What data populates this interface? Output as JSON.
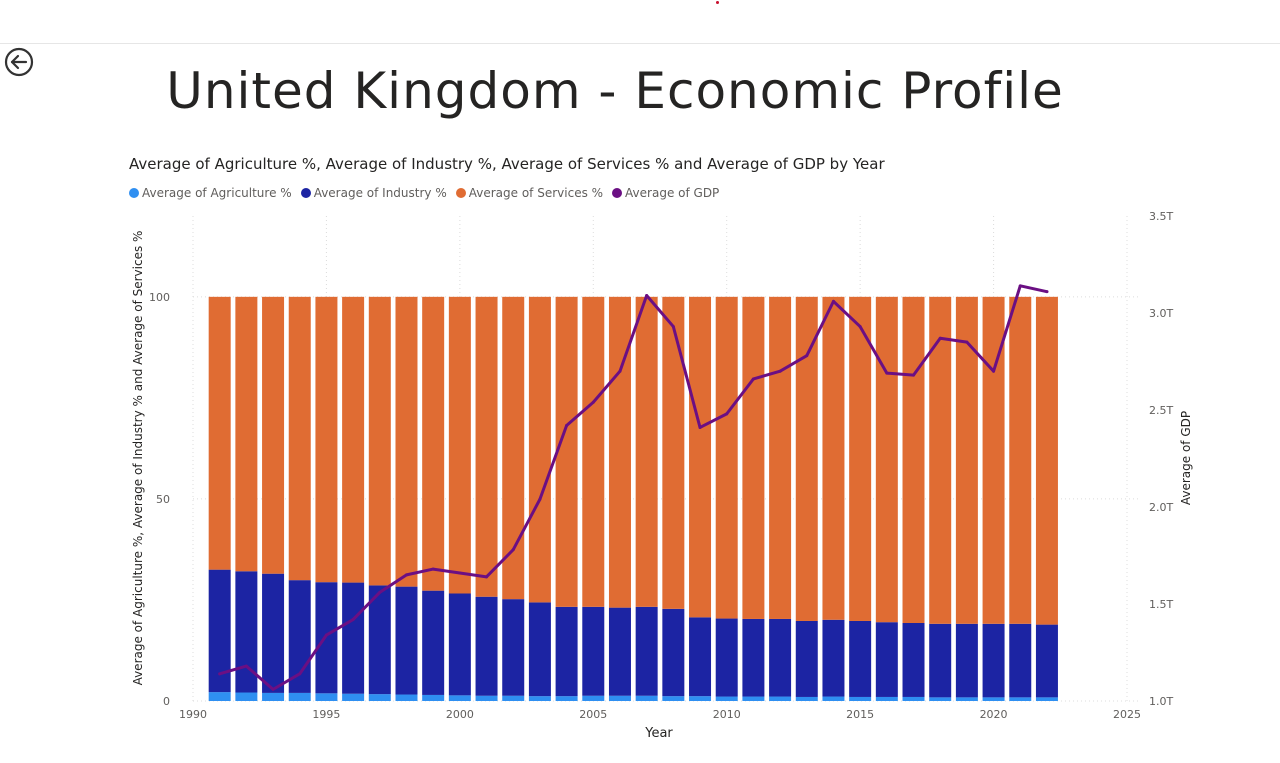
{
  "page": {
    "title": "United Kingdom - Economic Profile"
  },
  "icons": {
    "back": "back-arrow-icon"
  },
  "colors": {
    "agriculture": "#2f8ff1",
    "industry": "#1c24a3",
    "services": "#e06c33",
    "gdp": "#6b0f83",
    "grid": "#dcdcdc",
    "axis_text": "#605e5c"
  },
  "chart_data": {
    "type": "bar",
    "stacked": true,
    "title": "Average of Agriculture %, Average of Industry %, Average of Services % and Average of GDP by Year",
    "xlabel": "Year",
    "ylabel": "Average of Agriculture %, Average of Industry % and Average of Services %",
    "y2label": "Average of GDP",
    "xlim": [
      1990,
      2025
    ],
    "ylim": [
      0,
      120
    ],
    "y2lim": [
      1.0,
      3.5
    ],
    "x_ticks": [
      "1990",
      "1995",
      "2000",
      "2005",
      "2010",
      "2015",
      "2020",
      "2025"
    ],
    "y_ticks": [
      "0",
      "50",
      "100"
    ],
    "y2_ticks": [
      "1.0T",
      "1.5T",
      "2.0T",
      "2.5T",
      "3.0T",
      "3.5T"
    ],
    "legend_position": "top-left",
    "grid": true,
    "x": [
      1991,
      1992,
      1993,
      1994,
      1995,
      1996,
      1997,
      1998,
      1999,
      2000,
      2001,
      2002,
      2003,
      2004,
      2005,
      2006,
      2007,
      2008,
      2009,
      2010,
      2011,
      2012,
      2013,
      2014,
      2015,
      2016,
      2017,
      2018,
      2019,
      2020,
      2021,
      2022
    ],
    "series": [
      {
        "name": "Average of Agriculture %",
        "kind": "bar",
        "axis": "left",
        "values": [
          2.2,
          2.1,
          2.0,
          2.0,
          1.9,
          1.8,
          1.7,
          1.6,
          1.5,
          1.4,
          1.3,
          1.3,
          1.2,
          1.2,
          1.3,
          1.3,
          1.3,
          1.2,
          1.2,
          1.1,
          1.1,
          1.1,
          1.0,
          1.1,
          1.0,
          1.0,
          1.0,
          0.9,
          0.9,
          0.9,
          0.9,
          0.9
        ]
      },
      {
        "name": "Average of Industry %",
        "kind": "bar",
        "axis": "left",
        "values": [
          30.3,
          30.0,
          29.5,
          27.9,
          27.5,
          27.5,
          26.9,
          26.7,
          25.8,
          25.2,
          24.5,
          23.9,
          23.2,
          22.1,
          22.0,
          21.8,
          22.0,
          21.6,
          19.5,
          19.3,
          19.2,
          19.2,
          18.8,
          19.0,
          18.8,
          18.5,
          18.3,
          18.2,
          18.2,
          18.2,
          18.2,
          18.0
        ]
      },
      {
        "name": "Average of Services %",
        "kind": "bar",
        "axis": "left",
        "values": [
          67.5,
          67.9,
          68.5,
          70.1,
          70.6,
          70.7,
          71.4,
          71.7,
          72.7,
          73.4,
          74.2,
          74.8,
          75.6,
          76.7,
          76.7,
          76.9,
          76.7,
          77.2,
          79.3,
          79.6,
          79.7,
          79.7,
          80.2,
          79.9,
          80.2,
          80.5,
          80.7,
          80.9,
          80.9,
          80.9,
          80.9,
          81.1
        ]
      },
      {
        "name": "Average of GDP",
        "kind": "line",
        "axis": "right",
        "unit": "T",
        "values": [
          1.14,
          1.18,
          1.06,
          1.14,
          1.34,
          1.42,
          1.56,
          1.65,
          1.68,
          1.66,
          1.64,
          1.78,
          2.04,
          2.42,
          2.54,
          2.7,
          3.09,
          2.93,
          2.41,
          2.48,
          2.66,
          2.7,
          2.78,
          3.06,
          2.93,
          2.69,
          2.68,
          2.87,
          2.85,
          2.7,
          3.14,
          3.11
        ]
      }
    ]
  }
}
